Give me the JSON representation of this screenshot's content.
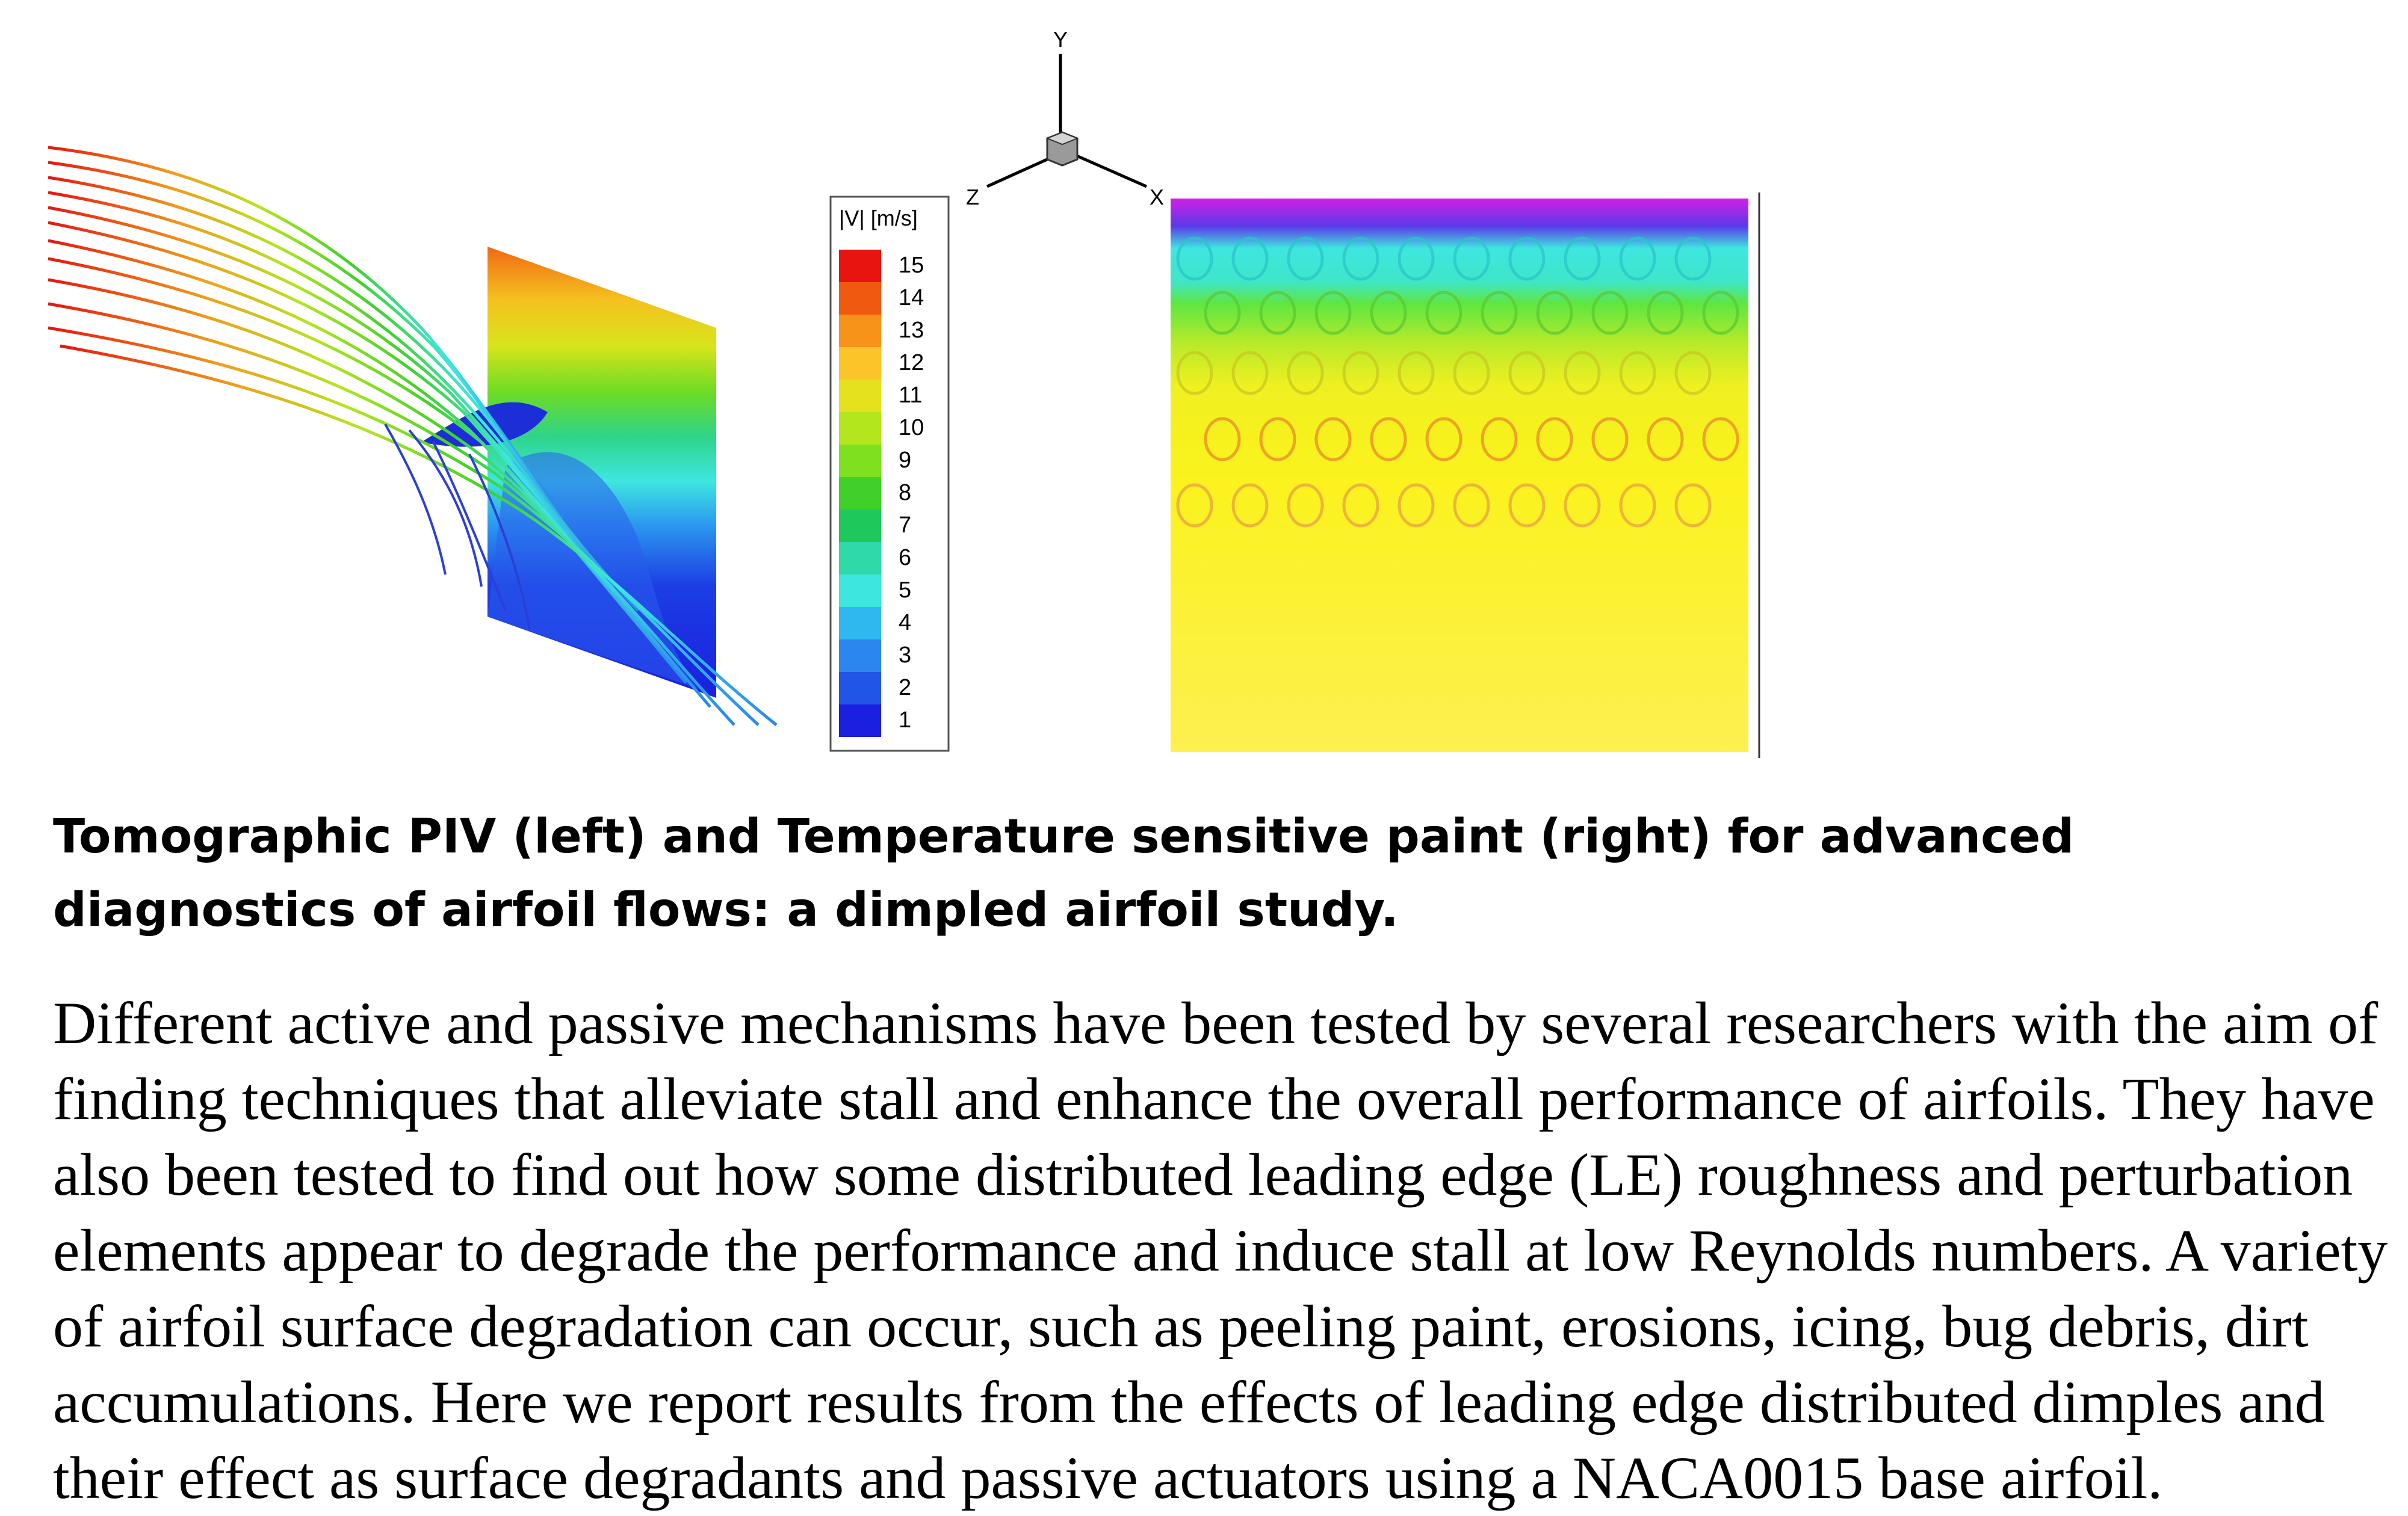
{
  "figure": {
    "colorbar": {
      "title": "|V| [m/s]",
      "ticks": [
        "15",
        "14",
        "13",
        "12",
        "11",
        "10",
        "9",
        "8",
        "7",
        "6",
        "5",
        "4",
        "3",
        "2",
        "1"
      ],
      "colors": [
        "#e8140f",
        "#f05a10",
        "#f8931a",
        "#fbc52a",
        "#e6e11f",
        "#b4e61e",
        "#7ee01f",
        "#3fd12a",
        "#1fc85a",
        "#2fd9a8",
        "#3ee6e0",
        "#2fb8f0",
        "#2b86ef",
        "#2155e8",
        "#1b1fe0"
      ]
    },
    "axes": {
      "x": "X",
      "y": "Y",
      "z": "Z"
    }
  },
  "caption": "Tomographic PIV (left) and Temperature sensitive paint (right) for advanced diagnostics of airfoil flows: a dimpled airfoil study.",
  "body": "Different active and passive mechanisms have been tested by several researchers with the aim of finding techniques that alleviate stall and enhance the overall performance of airfoils.  They have also been tested to find out how some distributed leading edge (LE) roughness and perturbation elements appear to degrade the performance and induce stall at low Reynolds numbers. A variety of airfoil surface degradation can occur, such as peeling paint, erosions, icing, bug debris, dirt accumulations. Here we report results from the effects of leading edge distributed dimples and their effect as surface degradants and passive actuators using a NACA0015 base airfoil."
}
